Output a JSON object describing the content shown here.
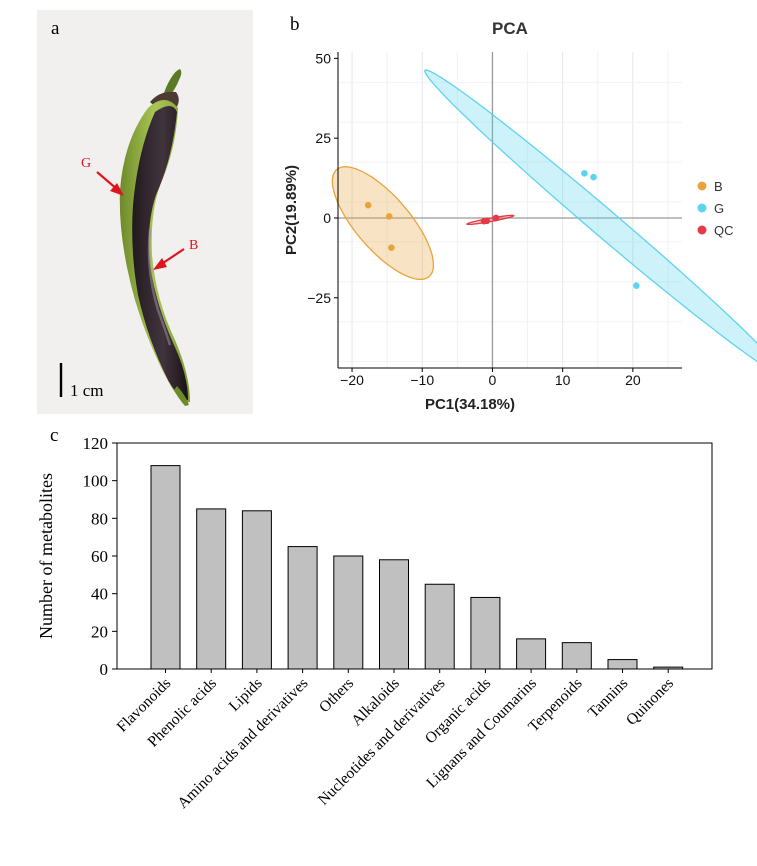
{
  "panel_labels": {
    "a": "a",
    "b": "b",
    "c": "c"
  },
  "photo": {
    "markers": [
      {
        "label": "G",
        "color": "#e0141c"
      },
      {
        "label": "B",
        "color": "#e0141c"
      }
    ],
    "scale_label": "1 cm"
  },
  "chart_data": [
    {
      "id": "pca",
      "type": "scatter",
      "title": "PCA",
      "xlabel": "PC1(34.18%)",
      "ylabel": "PC2(19.89%)",
      "xlim": [
        -22,
        27
      ],
      "ylim": [
        -47,
        52
      ],
      "xticks": [
        -20,
        -10,
        0,
        10,
        20
      ],
      "xtick_labels": [
        "−20",
        "−10",
        "0",
        "10",
        "20"
      ],
      "yticks": [
        -25,
        0,
        25,
        50
      ],
      "ytick_labels": [
        "−25",
        "0",
        "25",
        "50"
      ],
      "grid": true,
      "legend_position": "right",
      "series": [
        {
          "name": "B",
          "color": "#e8a43a",
          "points": [
            [
              -17.7,
              4.0
            ],
            [
              -14.7,
              0.5
            ],
            [
              -14.4,
              -9.3
            ]
          ],
          "ellipse": {
            "center": [
              -15.6,
              -1.6
            ],
            "semi_major": 18.5,
            "semi_minor": 4.6,
            "angle_deg": 108
          }
        },
        {
          "name": "G",
          "color": "#5dd3ef",
          "points": [
            [
              13.1,
              14.0
            ],
            [
              14.4,
              12.8
            ],
            [
              20.5,
              -21.2
            ]
          ],
          "ellipse": {
            "center": [
              15.9,
              -1.5
            ],
            "semi_major": 54.2,
            "semi_minor": 2.6,
            "angle_deg": 118
          }
        },
        {
          "name": "QC",
          "color": "#e53a48",
          "points": [
            [
              -1.2,
              -1.0
            ],
            [
              -0.8,
              -0.9
            ],
            [
              0.5,
              0.0
            ]
          ],
          "ellipse": {
            "center": [
              -0.3,
              -0.6
            ],
            "semi_major": 3.6,
            "semi_minor": 0.5,
            "angle_deg": 22
          }
        }
      ]
    },
    {
      "id": "metabolites",
      "type": "bar",
      "title": "",
      "xlabel": "",
      "ylabel": "Number of metabolites",
      "ylim": [
        0,
        120
      ],
      "yticks": [
        0,
        20,
        40,
        60,
        80,
        100,
        120
      ],
      "categories": [
        "Flavonoids",
        "Phenolic acids",
        "Lipids",
        "Amino acids and derivatives",
        "Others",
        "Alkaloids",
        "Nucleotides and derivatives",
        "Organic acids",
        "Lignans and Coumarins",
        "Terpenoids",
        "Tannins",
        "Quinones"
      ],
      "values": [
        108,
        85,
        84,
        65,
        60,
        58,
        45,
        38,
        16,
        14,
        5,
        1
      ],
      "bar_color": "#c0c0c0"
    }
  ]
}
